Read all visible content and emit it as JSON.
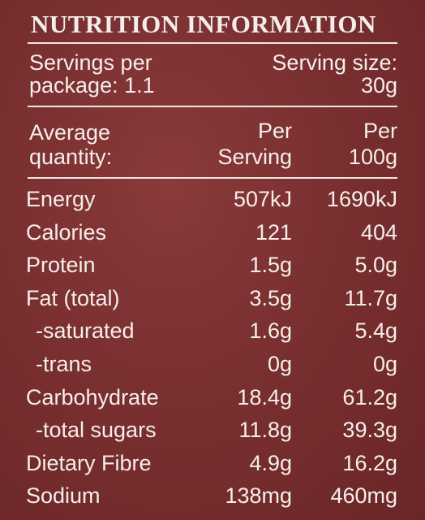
{
  "panel": {
    "title": "NUTRITION INFORMATION",
    "servings_per_package": [
      "Servings per",
      "package: 1.1"
    ],
    "serving_size": [
      "Serving size:",
      "30g"
    ]
  },
  "table": {
    "header": {
      "label": [
        "Average",
        "quantity:"
      ],
      "col1": [
        "Per",
        "Serving"
      ],
      "col2": [
        "Per",
        "100g"
      ]
    },
    "rows": [
      {
        "name": "Energy",
        "per_serving": "507kJ",
        "per_100g": "1690kJ"
      },
      {
        "name": "Calories",
        "per_serving": "121",
        "per_100g": "404"
      },
      {
        "name": "Protein",
        "per_serving": "1.5g",
        "per_100g": "5.0g"
      },
      {
        "name": "Fat (total)",
        "per_serving": "3.5g",
        "per_100g": "11.7g"
      },
      {
        "name": "-saturated",
        "per_serving": "1.6g",
        "per_100g": "5.4g"
      },
      {
        "name": "-trans",
        "per_serving": "0g",
        "per_100g": "0g"
      },
      {
        "name": "Carbohydrate",
        "per_serving": "18.4g",
        "per_100g": "61.2g"
      },
      {
        "name": "-total sugars",
        "per_serving": "11.8g",
        "per_100g": "39.3g"
      },
      {
        "name": "Dietary Fibre",
        "per_serving": "4.9g",
        "per_100g": "16.2g"
      },
      {
        "name": "Sodium",
        "per_serving": "138mg",
        "per_100g": "460mg"
      }
    ]
  },
  "colors": {
    "background": "#7a2f30",
    "text": "#f4eeea"
  }
}
